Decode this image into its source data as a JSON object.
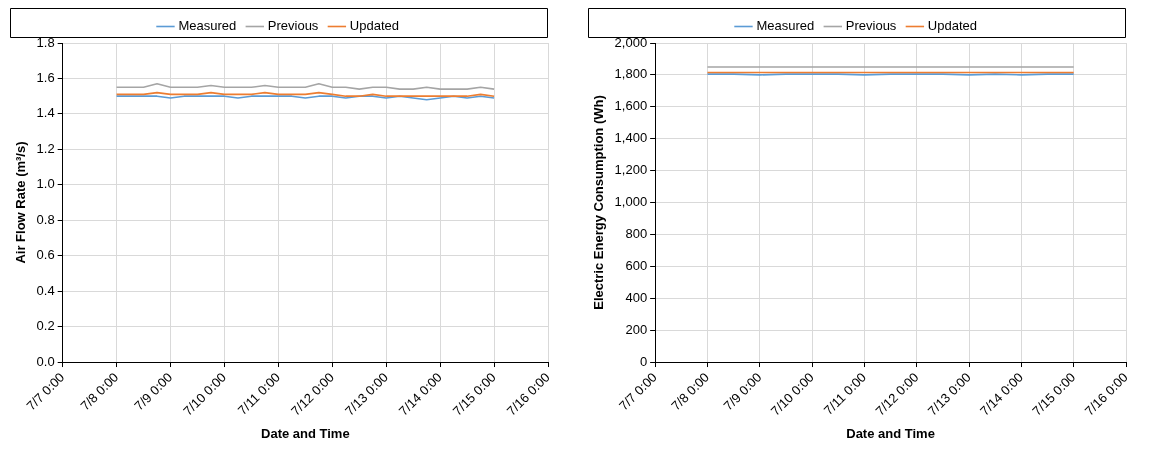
{
  "chart_data": [
    {
      "type": "line",
      "xlabel": "Date and Time",
      "ylabel": "Air Flow Rate (m³/s)",
      "legend": "top",
      "grid": true,
      "marker": "none",
      "line_style": "solid",
      "x": [
        "--07-08T00:00",
        "--07-08T06:00",
        "--07-08T12:00",
        "--07-08T18:00",
        "--07-09T00:00",
        "--07-09T06:00",
        "--07-09T12:00",
        "--07-09T18:00",
        "--07-10T00:00",
        "--07-10T06:00",
        "--07-10T12:00",
        "--07-10T18:00",
        "--07-11T00:00",
        "--07-11T06:00",
        "--07-11T12:00",
        "--07-11T18:00",
        "--07-12T00:00",
        "--07-12T06:00",
        "--07-12T12:00",
        "--07-12T18:00",
        "--07-13T00:00",
        "--07-13T06:00",
        "--07-13T12:00",
        "--07-13T18:00",
        "--07-14T00:00",
        "--07-14T06:00",
        "--07-14T12:00",
        "--07-14T18:00",
        "--07-15T00:00"
      ],
      "xlim": [
        "--07-07",
        "--07-16"
      ],
      "xticks": [
        {
          "value": "--07-07",
          "label": "7/7 0:00"
        },
        {
          "value": "--07-08",
          "label": "7/8 0:00"
        },
        {
          "value": "--07-09",
          "label": "7/9 0:00"
        },
        {
          "value": "--07-10",
          "label": "7/10 0:00"
        },
        {
          "value": "--07-11",
          "label": "7/11 0:00"
        },
        {
          "value": "--07-12",
          "label": "7/12 0:00"
        },
        {
          "value": "--07-13",
          "label": "7/13 0:00"
        },
        {
          "value": "--07-14",
          "label": "7/14 0:00"
        },
        {
          "value": "--07-15",
          "label": "7/15 0:00"
        },
        {
          "value": "--07-16",
          "label": "7/16 0:00"
        }
      ],
      "ylim": [
        0,
        1.8
      ],
      "yticks": [
        {
          "value": 0,
          "label": "0.0"
        },
        0.2,
        0.4,
        0.6,
        0.8,
        {
          "value": 1,
          "label": "1.0"
        },
        1.2,
        1.4,
        1.6,
        1.8
      ],
      "series": [
        {
          "name": "Measured",
          "color": "#5b9bd5",
          "values": [
            1.5,
            1.5,
            1.5,
            1.5,
            1.49,
            1.5,
            1.5,
            1.5,
            1.5,
            1.49,
            1.5,
            1.5,
            1.5,
            1.5,
            1.49,
            1.5,
            1.5,
            1.49,
            1.5,
            1.5,
            1.49,
            1.5,
            1.49,
            1.48,
            1.49,
            1.5,
            1.49,
            1.5,
            1.49
          ]
        },
        {
          "name": "Previous",
          "color": "#a5a5a5",
          "values": [
            1.55,
            1.55,
            1.55,
            1.57,
            1.55,
            1.55,
            1.55,
            1.56,
            1.55,
            1.55,
            1.55,
            1.56,
            1.55,
            1.55,
            1.55,
            1.57,
            1.55,
            1.55,
            1.54,
            1.55,
            1.55,
            1.54,
            1.54,
            1.55,
            1.54,
            1.54,
            1.54,
            1.55,
            1.54
          ]
        },
        {
          "name": "Updated",
          "color": "#ed7d31",
          "values": [
            1.51,
            1.51,
            1.51,
            1.52,
            1.51,
            1.51,
            1.51,
            1.52,
            1.51,
            1.51,
            1.51,
            1.52,
            1.51,
            1.51,
            1.51,
            1.52,
            1.51,
            1.5,
            1.5,
            1.51,
            1.5,
            1.5,
            1.5,
            1.5,
            1.5,
            1.5,
            1.5,
            1.51,
            1.5
          ]
        }
      ]
    },
    {
      "type": "line",
      "xlabel": "Date and Time",
      "ylabel": "Electric Energy Consumption (Wh)",
      "legend": "top",
      "grid": true,
      "marker": "none",
      "line_style": "solid",
      "x": [
        "--07-08T00:00",
        "--07-08T12:00",
        "--07-09T00:00",
        "--07-09T12:00",
        "--07-10T00:00",
        "--07-10T12:00",
        "--07-11T00:00",
        "--07-11T12:00",
        "--07-12T00:00",
        "--07-12T12:00",
        "--07-13T00:00",
        "--07-13T12:00",
        "--07-14T00:00",
        "--07-14T12:00",
        "--07-15T00:00"
      ],
      "xlim": [
        "--07-07",
        "--07-16"
      ],
      "xticks": [
        {
          "value": "--07-07",
          "label": "7/7 0:00"
        },
        {
          "value": "--07-08",
          "label": "7/8 0:00"
        },
        {
          "value": "--07-09",
          "label": "7/9 0:00"
        },
        {
          "value": "--07-10",
          "label": "7/10 0:00"
        },
        {
          "value": "--07-11",
          "label": "7/11 0:00"
        },
        {
          "value": "--07-12",
          "label": "7/12 0:00"
        },
        {
          "value": "--07-13",
          "label": "7/13 0:00"
        },
        {
          "value": "--07-14",
          "label": "7/14 0:00"
        },
        {
          "value": "--07-15",
          "label": "7/15 0:00"
        },
        {
          "value": "--07-16",
          "label": "7/16 0:00"
        }
      ],
      "ylim": [
        0,
        2000
      ],
      "yticks": [
        0,
        200,
        400,
        600,
        800,
        {
          "value": 1000,
          "label": "1,000"
        },
        {
          "value": 1200,
          "label": "1,200"
        },
        {
          "value": 1400,
          "label": "1,400"
        },
        {
          "value": 1600,
          "label": "1,600"
        },
        {
          "value": 1800,
          "label": "1,800"
        },
        {
          "value": 2000,
          "label": "2,000"
        }
      ],
      "series": [
        {
          "name": "Measured",
          "color": "#5b9bd5",
          "values": [
            1805,
            1805,
            1800,
            1805,
            1805,
            1805,
            1800,
            1805,
            1805,
            1805,
            1800,
            1805,
            1800,
            1805,
            1805
          ]
        },
        {
          "name": "Previous",
          "color": "#a5a5a5",
          "values": [
            1850,
            1850,
            1850,
            1850,
            1850,
            1850,
            1850,
            1850,
            1850,
            1850,
            1850,
            1850,
            1850,
            1850,
            1850
          ]
        },
        {
          "name": "Updated",
          "color": "#ed7d31",
          "values": [
            1815,
            1815,
            1815,
            1815,
            1815,
            1815,
            1815,
            1815,
            1815,
            1815,
            1815,
            1815,
            1815,
            1815,
            1815
          ]
        }
      ]
    }
  ]
}
